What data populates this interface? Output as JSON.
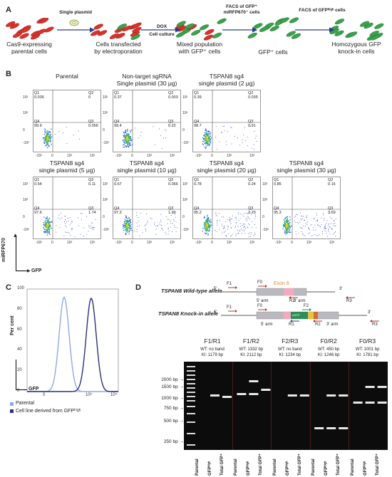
{
  "panels": {
    "A": "A",
    "B": "B",
    "C": "C",
    "D": "D"
  },
  "panel_a": {
    "steps": [
      {
        "caption": "Cas9-expressing\nparental cells"
      },
      {
        "caption": "Cells transfected\nby electroporation"
      },
      {
        "caption": "Mixed population\nwith GFP⁺ cells"
      },
      {
        "caption": "GFP⁺ cells"
      },
      {
        "caption": "Homozygous GFP\nknock-in cells"
      }
    ],
    "arrow1": "Single plasmid",
    "arrow2_top": "DOX",
    "arrow2_bottom": "Cell culture",
    "arrow3": "FACS of GFP⁺\nmiRFP670⁻ cells",
    "arrow4": "FACS of GFPʰⁱᵍʰ cells",
    "colors": {
      "red": "#d9322b",
      "green": "#3aa24a",
      "arrow": "#2a3c8f"
    }
  },
  "panel_b": {
    "plots": [
      {
        "title": "Parental",
        "q1": "Q1\n0.036",
        "q2": "Q2\n0",
        "q3": "Q3\n0.056",
        "q4": "Q4\n99.9"
      },
      {
        "title": "Non-target sgRNA\nSingle plasmid (30 μg)",
        "q1": "Q1\n0.37",
        "q2": "Q2\n0.003",
        "q3": "Q3\n0.22",
        "q4": "Q4\n99.4"
      },
      {
        "title": "TSPAN8 sg4\nsingle plasmid (2 μg)",
        "q1": "Q1\n0.39",
        "q2": "Q2\n0.035",
        "q3": "Q3\n0.91",
        "q4": "Q4\n98.7"
      },
      {
        "title": "TSPAN8 sg4\nsingle plasmid (5 μg)",
        "q1": "Q1\n0.54",
        "q2": "Q2\n0.11",
        "q3": "Q3\n1.74",
        "q4": "Q4\n97.6"
      },
      {
        "title": "TSPAN8 sg4\nsingle plasmid (10 μg)",
        "q1": "Q1\n0.67",
        "q2": "Q2\n0.066",
        "q3": "Q3\n1.99",
        "q4": "Q4\n97.3"
      },
      {
        "title": "TSPAN8 sg4\nsingle plasmid (20 μg)",
        "q1": "Q1\n0.78",
        "q2": "Q2\n0.24",
        "q3": "Q3\n3.79",
        "q4": "Q4\n95.2"
      },
      {
        "title": "TSPAN8 sg4\nsingle plasmid (30 μg)",
        "q1": "Q1\n0.85",
        "q2": "Q2\n0.16",
        "q3": "Q3\n3.69",
        "q4": "Q4\n95.3"
      }
    ],
    "y_ticks": [
      "10³",
      "10²",
      "0",
      "-10²"
    ],
    "x_ticks": [
      "-10²",
      "0",
      "10²",
      "10³"
    ],
    "y_axis": "miRFP670",
    "x_axis": "GFP"
  },
  "panel_c": {
    "y_label": "Per cent",
    "x_label": "GFP",
    "y_ticks": [
      "0",
      "20",
      "40",
      "60",
      "80",
      "100"
    ],
    "x_ticks": [
      "0",
      "10³",
      "10⁴"
    ],
    "legend": [
      {
        "label": "Parental",
        "color": "#8ea9e8"
      },
      {
        "label": "Cell line derived from GFPʰⁱᵍʰ",
        "color": "#2c2f7a"
      }
    ]
  },
  "panel_d": {
    "wt_allele": "TSPAN8 Wild-type allele",
    "ki_allele": "TSPAN8 Knock-in allele",
    "exon": "Exon 6",
    "five": "5'",
    "three": "3'",
    "five_arm": "5' arm",
    "three_arm": "3' arm",
    "primers": {
      "f1": "F1",
      "f0": "F0",
      "f2": "F2",
      "r1": "R1",
      "r2": "R2",
      "r3": "R3",
      "egfp": "eGFP"
    },
    "gel_groups": [
      {
        "name": "F1/R1",
        "wt": "WT: no band",
        "ki": "KI: 1179 bp"
      },
      {
        "name": "F1/R2",
        "wt": "WT: 1332 bp",
        "ki": "KI: 2112 bp"
      },
      {
        "name": "F2/R3",
        "wt": "WT: no band",
        "ki": "KI: 1234 bp"
      },
      {
        "name": "F0/R2",
        "wt": "WT: 450 bp",
        "ki": "KI: 1246 bp"
      },
      {
        "name": "F0/R3",
        "wt": "WT: 1001 bp",
        "ki": "KI: 1781 bp"
      }
    ],
    "ladder": [
      "2000 bp",
      "1500 bp",
      "1000 bp",
      "750 bp",
      "500 bp",
      "250 bp"
    ],
    "lane_labels": [
      "Parental",
      "GFPʰⁱᵍʰ",
      "Total GFP⁺"
    ]
  }
}
